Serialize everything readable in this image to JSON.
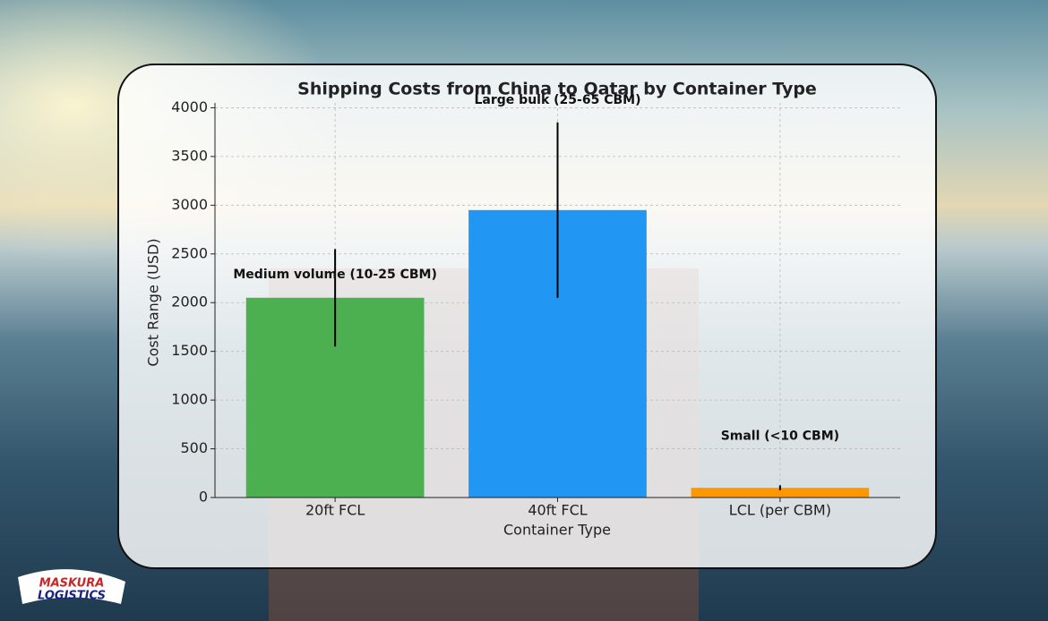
{
  "chart_data": {
    "type": "bar",
    "title": "Shipping Costs from China to Qatar by Container Type",
    "x_label": "Container Type",
    "y_label": "Cost Range (USD)",
    "categories": [
      "20ft FCL",
      "40ft FCL",
      "LCL (per CBM)"
    ],
    "values": [
      2050,
      2950,
      100
    ],
    "errors": [
      500,
      900,
      25
    ],
    "colors": [
      "#4caf50",
      "#2196f3",
      "#ff9800"
    ],
    "annotations": [
      "Medium volume (10-25 CBM)",
      "Large bulk (25-65 CBM)",
      "Small (<10 CBM)"
    ],
    "ylim": [
      0,
      4050
    ],
    "yticks": [
      0,
      500,
      1000,
      1500,
      2000,
      2500,
      3000,
      3500,
      4000
    ],
    "grid": true
  },
  "logo": {
    "line1": "MASKURA",
    "line2": "LOGISTICS"
  }
}
